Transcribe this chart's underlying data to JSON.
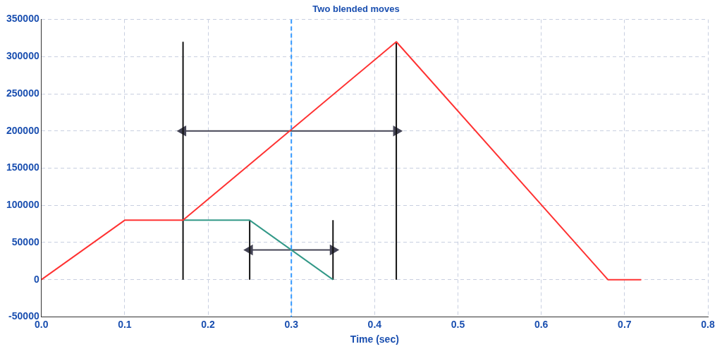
{
  "chart_data": {
    "type": "line",
    "title": "Two blended moves",
    "xlabel": "Time (sec)",
    "xlim": [
      0,
      0.8
    ],
    "xticks": [
      {
        "value": 0,
        "label": "0.0"
      },
      {
        "value": 0.1,
        "label": "0.1"
      },
      {
        "value": 0.2,
        "label": "0.2"
      },
      {
        "value": 0.3,
        "label": "0.3"
      },
      {
        "value": 0.4,
        "label": "0.4"
      },
      {
        "value": 0.5,
        "label": "0.5"
      },
      {
        "value": 0.6,
        "label": "0.6"
      },
      {
        "value": 0.7,
        "label": "0.7"
      },
      {
        "value": 0.8,
        "label": "0.8"
      }
    ],
    "ylim": [
      -50000,
      350000
    ],
    "yticks": [
      -50000,
      0,
      50000,
      100000,
      150000,
      200000,
      250000,
      300000,
      350000
    ],
    "grid": true,
    "legend": false,
    "marker": "none",
    "line_style": "solid",
    "series": [
      {
        "color": "#ff3333",
        "x": [
          0,
          0.1,
          0.17,
          0.426,
          0.68,
          0.72
        ],
        "values": [
          0,
          80000,
          80000,
          320000,
          0,
          0
        ]
      },
      {
        "color": "#339988",
        "x": [
          0.17,
          0.25,
          0.35
        ],
        "values": [
          80000,
          80000,
          0
        ]
      },
      {
        "color": "#111111",
        "x": [
          0.17,
          0.17
        ],
        "values": [
          0,
          320000
        ]
      },
      {
        "color": "#111111",
        "x": [
          0.426,
          0.426
        ],
        "values": [
          0,
          320000
        ]
      },
      {
        "color": "#111111",
        "x": [
          0.25,
          0.25
        ],
        "values": [
          0,
          80000
        ]
      },
      {
        "color": "#111111",
        "x": [
          0.35,
          0.35
        ],
        "values": [
          0,
          80000
        ]
      },
      {
        "color": "#444455",
        "marker": "triangle",
        "x": [
          0.17,
          0.426
        ],
        "values": [
          200000,
          200000
        ]
      },
      {
        "color": "#444455",
        "marker": "triangle",
        "x": [
          0.25,
          0.35
        ],
        "values": [
          40000,
          40000
        ]
      }
    ],
    "ref_lines": [
      {
        "axis": "x",
        "value": 0.3,
        "color": "#3399ff",
        "line_style": "dashed"
      }
    ]
  }
}
